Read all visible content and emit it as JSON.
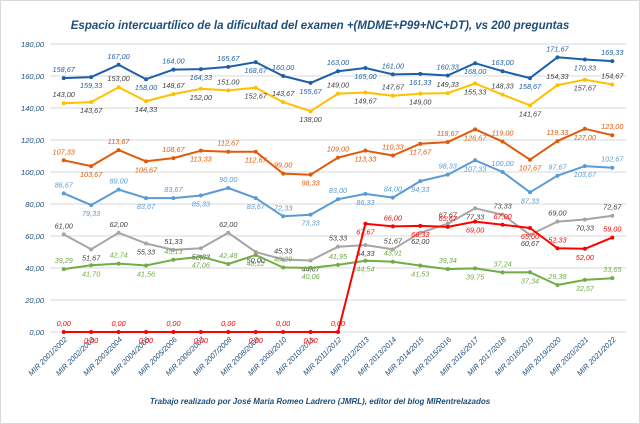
{
  "chart_data": {
    "type": "line",
    "title": "Espacio intercuartílico de la dificultad del examen +(MDME+P99+NC+DT), vs 200 preguntas",
    "caption": "Trabajo realizado por José María Romeo Ladrero (JMRL), editor del blog MIRentrelazados",
    "xlabel": "",
    "ylabel": "",
    "ylim": [
      0,
      180
    ],
    "yticks": [
      "0,00",
      "20,00",
      "40,00",
      "60,00",
      "80,00",
      "100,00",
      "120,00",
      "140,00",
      "160,00",
      "180,00"
    ],
    "categories": [
      "MIR 2001/2002",
      "MIR 2002/2003",
      "MIR 2003/2004",
      "MIR 2004/2005",
      "MIR 2005/2006",
      "MIR 2006/2007",
      "MIR 2007/2008",
      "MIR 2008/2009",
      "MIR 2009/2010",
      "MIR 2010/2011",
      "MIR 2011/2012",
      "MIR 2012/2013",
      "MIR 2013/2014",
      "MIR 2014/2015",
      "MIR 2015/2016",
      "MIR 2016/2017",
      "MIR 2017/2018",
      "MIR 2018/2019",
      "MIR 2019/2020",
      "MIR 2020/2021",
      "MIR 2021/2022"
    ],
    "series": [
      {
        "name": "Serie azul oscuro",
        "color": "#1f5fa8",
        "values": [
          158.67,
          159.33,
          167.0,
          158.0,
          164.0,
          164.33,
          165.67,
          168.67,
          160.0,
          155.67,
          163.0,
          165.0,
          161.0,
          161.33,
          160.33,
          168.0,
          163.0,
          158.67,
          171.67,
          170.33,
          169.33
        ],
        "labels": [
          "158,67",
          "159,33",
          "167,00",
          "158,00",
          "164,00",
          "164,33",
          "165,67",
          "168,67",
          "160,00",
          "155,67",
          "163,00",
          "165,00",
          "161,00",
          "161,33",
          "160,33",
          "168,00",
          "163,00",
          "158,67",
          "171,67",
          "170,33",
          "169,33"
        ]
      },
      {
        "name": "Serie amarilla",
        "color": "#ffc000",
        "values": [
          143.0,
          143.67,
          153.0,
          144.33,
          148.67,
          152.0,
          151.0,
          152.67,
          143.67,
          138.0,
          149.0,
          149.67,
          147.67,
          149.0,
          149.33,
          155.33,
          148.33,
          141.67,
          154.33,
          157.67,
          154.67
        ],
        "labels": [
          "143,00",
          "143,67",
          "153,00",
          "144,33",
          "148,67",
          "152,00",
          "151,00",
          "152,67",
          "143,67",
          "138,00",
          "149,00",
          "149,67",
          "147,67",
          "149,00",
          "149,33",
          "155,33",
          "148,33",
          "141,67",
          "154,33",
          "157,67",
          "154,67"
        ]
      },
      {
        "name": "Serie naranja",
        "color": "#e05a0c",
        "values": [
          107.33,
          103.67,
          113.67,
          106.67,
          108.67,
          113.33,
          112.67,
          112.67,
          99.0,
          98.33,
          109.0,
          113.33,
          110.33,
          117.67,
          118.67,
          126.67,
          119.0,
          107.67,
          119.33,
          127.0,
          123.0
        ],
        "labels": [
          "107,33",
          "103,67",
          "113,67",
          "106,67",
          "108,67",
          "113,33",
          "112,67",
          "112,67",
          "99,00",
          "98,33",
          "109,00",
          "113,33",
          "110,33",
          "117,67",
          "118,67",
          "126,67",
          "119,00",
          "107,67",
          "119,33",
          "127,00",
          "123,00"
        ]
      },
      {
        "name": "Serie azul claro",
        "color": "#5b9bd5",
        "values": [
          86.67,
          79.33,
          89.0,
          83.67,
          83.67,
          85.33,
          90.0,
          83.67,
          72.33,
          73.33,
          83.0,
          86.33,
          84.0,
          94.33,
          98.33,
          107.33,
          100.0,
          87.33,
          97.67,
          103.67,
          102.67
        ],
        "labels": [
          "86,67",
          "79,33",
          "89,00",
          "83,67",
          "83,67",
          "85,33",
          "90,00",
          "83,67",
          "72,33",
          "73,33",
          "83,00",
          "86,33",
          "84,00",
          "94,33",
          "98,33",
          "107,33",
          "100,00",
          "87,33",
          "97,67",
          "103,67",
          "102,67"
        ]
      },
      {
        "name": "Serie gris",
        "color": "#a5a5a5",
        "values": [
          61.0,
          51.67,
          62.0,
          55.33,
          51.33,
          52.33,
          62.0,
          50.0,
          45.33,
          44.67,
          53.33,
          54.33,
          51.67,
          62.0,
          67.67,
          77.33,
          73.33,
          60.67,
          69.0,
          70.33,
          72.67
        ],
        "labels": [
          "61,00",
          "51,67",
          "62,00",
          "55,33",
          "51,33",
          "52,33",
          "62,00",
          "50,00",
          "45,33",
          "44,67",
          "53,33",
          "54,33",
          "51,67",
          "62,00",
          "67,67",
          "77,33",
          "73,33",
          "60,67",
          "69,00",
          "70,33",
          "72,67"
        ]
      },
      {
        "name": "Serie verde",
        "color": "#70ad47",
        "values": [
          39.29,
          41.7,
          42.74,
          41.56,
          45.13,
          47.06,
          42.48,
          48.12,
          40.29,
          40.06,
          41.95,
          44.54,
          43.91,
          41.53,
          39.34,
          39.75,
          37.24,
          37.34,
          29.38,
          32.57,
          33.65
        ],
        "labels": [
          "39,29",
          "41,70",
          "42,74",
          "41,56",
          "45,13",
          "47,06",
          "42,48",
          "48,12",
          "40,29",
          "40,06",
          "41,95",
          "44,54",
          "43,91",
          "41,53",
          "39,34",
          "39,75",
          "37,24",
          "37,34",
          "29,38",
          "32,57",
          "33,65"
        ]
      },
      {
        "name": "Serie roja",
        "color": "#ff0000",
        "values": [
          0,
          0,
          0,
          0,
          0,
          0,
          0,
          0,
          0,
          0,
          0,
          67.67,
          66.0,
          66.33,
          65.67,
          69.0,
          67.0,
          65.0,
          52.33,
          52.0,
          59.0
        ],
        "labels": [
          "0,00",
          "0,00",
          "0,00",
          "0,00",
          "0,00",
          "0,00",
          "0,00",
          "0,00",
          "0,00",
          "0,00",
          "0,00",
          "67,67",
          "66,00",
          "66,33",
          "65,67",
          "69,00",
          "67,00",
          "65,00",
          "52,33",
          "52,00",
          "59,00"
        ]
      }
    ]
  }
}
